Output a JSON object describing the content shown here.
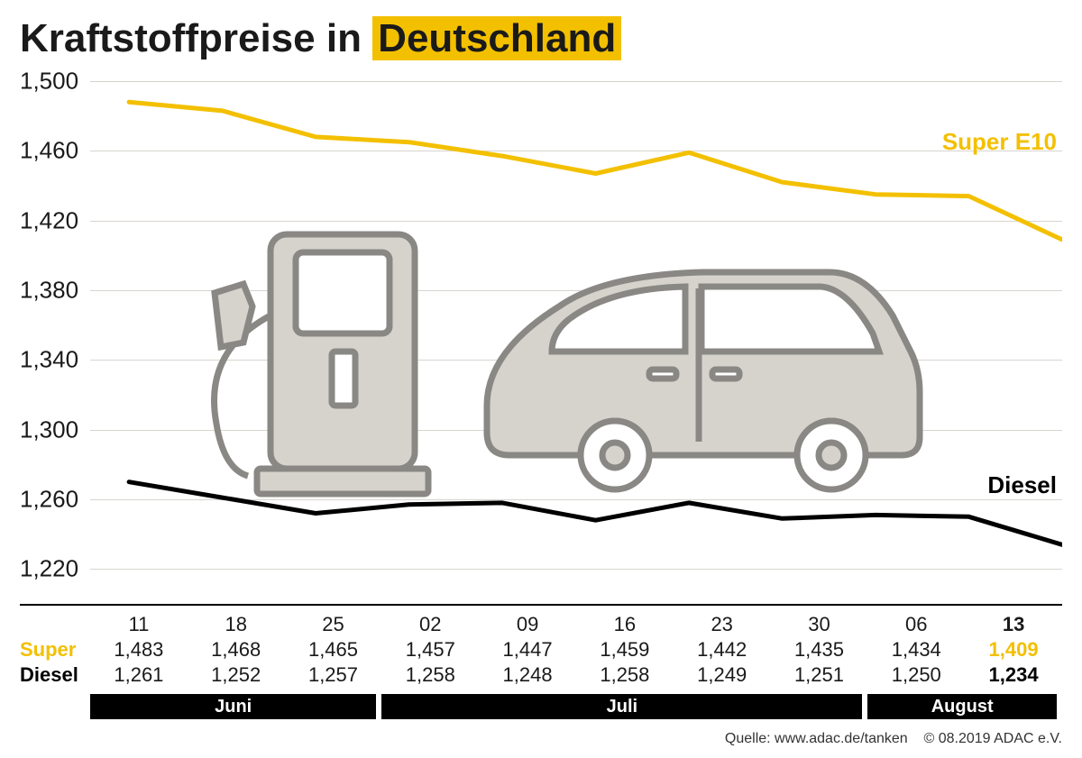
{
  "title": {
    "prefix": "Kraftstoffpreise in ",
    "highlight": "Deutschland"
  },
  "chart": {
    "type": "line",
    "ylim": [
      1.2,
      1.5
    ],
    "yticks": [
      1.22,
      1.26,
      1.3,
      1.34,
      1.38,
      1.42,
      1.46,
      1.5
    ],
    "ytick_labels": [
      "1,220",
      "1,260",
      "1,300",
      "1,340",
      "1,380",
      "1,420",
      "1,460",
      "1,500"
    ],
    "grid_color": "#d8d5d0",
    "background_color": "#ffffff",
    "axis_fontsize": 26,
    "line_width": 5,
    "x_dates": [
      "11",
      "18",
      "25",
      "02",
      "09",
      "16",
      "23",
      "30",
      "06",
      "13"
    ],
    "x_start_offset": 0.04,
    "series": [
      {
        "name": "Super E10",
        "label": "Super E10",
        "label_color": "#f3c000",
        "color": "#f3c000",
        "values": [
          1.488,
          1.483,
          1.468,
          1.465,
          1.457,
          1.447,
          1.459,
          1.442,
          1.435,
          1.434,
          1.409
        ],
        "label_pos": {
          "right": 6,
          "top_y": 1.465
        }
      },
      {
        "name": "Diesel",
        "label": "Diesel",
        "label_color": "#000000",
        "color": "#000000",
        "values": [
          1.27,
          1.261,
          1.252,
          1.257,
          1.258,
          1.248,
          1.258,
          1.249,
          1.251,
          1.25,
          1.234
        ],
        "label_pos": {
          "right": 6,
          "top_y": 1.268
        }
      }
    ]
  },
  "table": {
    "dates": [
      "11",
      "18",
      "25",
      "02",
      "09",
      "16",
      "23",
      "30",
      "06",
      "13"
    ],
    "rows": [
      {
        "label": "Super",
        "label_color": "#f3c000",
        "values": [
          "1,483",
          "1,468",
          "1,465",
          "1,457",
          "1,447",
          "1,459",
          "1,442",
          "1,435",
          "1,434",
          "1,409"
        ],
        "last_bold": true,
        "last_color": "#f3c000"
      },
      {
        "label": "Diesel",
        "label_color": "#000000",
        "values": [
          "1,261",
          "1,252",
          "1,257",
          "1,258",
          "1,248",
          "1,258",
          "1,249",
          "1,251",
          "1,250",
          "1,234"
        ],
        "last_bold": true,
        "last_color": "#000000"
      }
    ]
  },
  "months": [
    {
      "label": "Juni",
      "span": 3
    },
    {
      "label": "Juli",
      "span": 5
    },
    {
      "label": "August",
      "span": 2
    }
  ],
  "footer": {
    "source": "Quelle: www.adac.de/tanken",
    "copyright": "© 08.2019  ADAC e.V."
  },
  "illustration": {
    "pump_fill": "#d6d3cd",
    "pump_stroke": "#8a8884",
    "car_fill": "#d6d3cd",
    "car_stroke": "#8a8884"
  }
}
